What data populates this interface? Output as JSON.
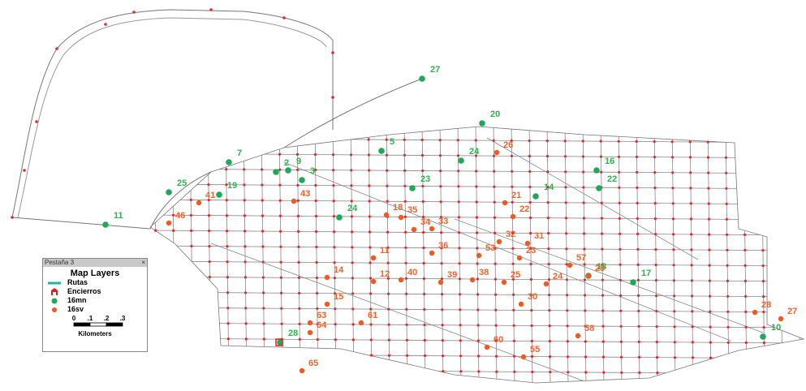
{
  "legend": {
    "window_title": "Pestaña 3",
    "title": "Map Layers",
    "layers": [
      "Rutas",
      "Encierros",
      "16mn",
      "16sv"
    ],
    "scale_ticks": [
      "0",
      ".1",
      ".2",
      ".3"
    ],
    "scale_unit": "Kilometers"
  },
  "points_16mn": [
    "27",
    "20",
    "11",
    "25",
    "7",
    "9",
    "5",
    "24",
    "16",
    "22",
    "24",
    "18",
    "17",
    "10",
    "28",
    "3",
    "2",
    "23",
    "14",
    "19"
  ],
  "points_16sv": [
    "41",
    "46",
    "43",
    "26",
    "21",
    "22",
    "32",
    "31",
    "57",
    "29",
    "24",
    "30",
    "28",
    "27",
    "58",
    "60",
    "55",
    "65",
    "61",
    "12",
    "11",
    "14",
    "15",
    "63",
    "64",
    "40",
    "38",
    "39",
    "25",
    "23",
    "53",
    "36",
    "33",
    "34",
    "35",
    "18"
  ]
}
